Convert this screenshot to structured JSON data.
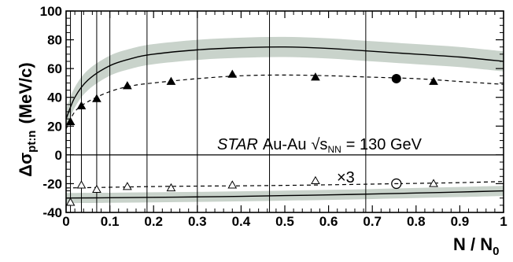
{
  "chart_data": {
    "type": "line",
    "title": "",
    "xlabel": "N / N",
    "xlabel_sub": "0",
    "ylabel": "Δσ",
    "ylabel_sub": "pt:n",
    "ylabel_unit": "(MeV/c)",
    "xlim": [
      0,
      1
    ],
    "ylim": [
      -40,
      100
    ],
    "x_ticks": [
      0,
      0.1,
      0.2,
      0.3,
      0.4,
      0.5,
      0.6,
      0.7,
      0.8,
      0.9,
      1
    ],
    "x_tick_labels": [
      "0",
      "0.1",
      "0.2",
      "0.3",
      "0.4",
      "0.5",
      "0.6",
      "0.7",
      "0.8",
      "0.9",
      "1"
    ],
    "y_ticks": [
      -40,
      -20,
      0,
      20,
      40,
      60,
      80,
      100
    ],
    "y_tick_labels": [
      "-40",
      "-20",
      "0",
      "20",
      "40",
      "60",
      "80",
      "100"
    ],
    "centrality_lines_x": [
      0.01,
      0.035,
      0.07,
      0.1,
      0.185,
      0.3,
      0.465,
      0.685
    ],
    "grid": false,
    "annotation": {
      "experiment": "STAR",
      "system": "Au-Au",
      "energy_symbol": "√s",
      "energy_sub": "NN",
      "energy_value": "= 130 GeV",
      "scale_factor": "×3"
    },
    "series": [
      {
        "style": "filled-triangles",
        "x": [
          0.01,
          0.035,
          0.07,
          0.14,
          0.24,
          0.38,
          0.57,
          0.84
        ],
        "y": [
          23,
          34,
          39,
          48,
          51,
          56,
          54,
          51
        ]
      },
      {
        "style": "filled-circle",
        "x": [
          0.755
        ],
        "y": [
          53
        ]
      },
      {
        "style": "open-triangles",
        "x": [
          0.01,
          0.035,
          0.07,
          0.14,
          0.24,
          0.38,
          0.57,
          0.84
        ],
        "y": [
          -33,
          -21,
          -24,
          -22,
          -23,
          -21,
          -18,
          -20
        ]
      },
      {
        "style": "open-circle",
        "x": [
          0.755
        ],
        "y": [
          -20
        ]
      },
      {
        "style": "solid-curve-upper",
        "x": [
          0,
          0.02,
          0.05,
          0.1,
          0.15,
          0.2,
          0.3,
          0.4,
          0.5,
          0.6,
          0.7,
          0.8,
          0.9,
          1.0
        ],
        "y": [
          25,
          40,
          52,
          62,
          67,
          70,
          73,
          74.5,
          75,
          74,
          72,
          70,
          68,
          65
        ],
        "band": 7
      },
      {
        "style": "dashed-curve-upper",
        "x": [
          0,
          0.02,
          0.05,
          0.1,
          0.15,
          0.2,
          0.3,
          0.4,
          0.5,
          0.6,
          0.7,
          0.8,
          0.9,
          1.0
        ],
        "y": [
          18,
          30,
          37,
          44,
          48,
          50,
          53,
          55,
          55.5,
          55,
          54,
          53,
          51,
          49
        ]
      },
      {
        "style": "dashed-curve-lower",
        "x": [
          0,
          0.1,
          0.2,
          0.3,
          0.4,
          0.5,
          0.6,
          0.7,
          0.8,
          0.9,
          1.0
        ],
        "y": [
          -23,
          -22.5,
          -22,
          -21.7,
          -21.5,
          -21.2,
          -20.8,
          -20.3,
          -19.8,
          -19.3,
          -18.5
        ]
      },
      {
        "style": "solid-curve-lower",
        "x": [
          0,
          0.1,
          0.2,
          0.3,
          0.4,
          0.5,
          0.6,
          0.7,
          0.8,
          0.9,
          1.0
        ],
        "y": [
          -30,
          -29.8,
          -29.5,
          -29.2,
          -28.8,
          -28.3,
          -27.8,
          -27.2,
          -26.5,
          -25.8,
          -25
        ],
        "band": 3.5
      }
    ]
  }
}
